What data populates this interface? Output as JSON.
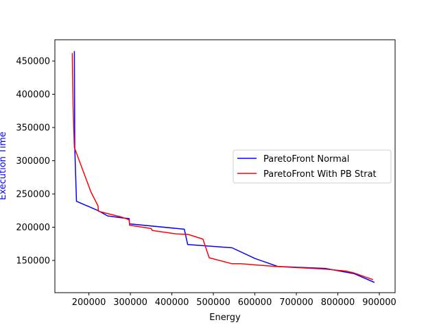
{
  "chart_data": {
    "type": "line",
    "xlabel": "Energy",
    "ylabel": "Execution Time",
    "xlim": [
      118000,
      938000
    ],
    "ylim": [
      101500,
      482000
    ],
    "x_ticks": [
      200000,
      300000,
      400000,
      500000,
      600000,
      700000,
      800000,
      900000
    ],
    "y_ticks": [
      150000,
      200000,
      250000,
      300000,
      350000,
      400000,
      450000
    ],
    "x_tick_labels": [
      "200000",
      "300000",
      "400000",
      "500000",
      "600000",
      "700000",
      "800000",
      "900000"
    ],
    "y_tick_labels": [
      "150000",
      "200000",
      "250000",
      "300000",
      "350000",
      "400000",
      "450000"
    ],
    "grid": false,
    "legend_position": "center-right",
    "colors": {
      "ylabel": "#0000ff",
      "axes": "#000000"
    },
    "series": [
      {
        "name": "ParetoFront Normal",
        "color": "#0000ff",
        "x": [
          165000,
          166000,
          170000,
          222000,
          245000,
          280000,
          297000,
          298000,
          430000,
          438000,
          545000,
          600000,
          655000,
          770000,
          840000,
          888000
        ],
        "y": [
          465000,
          320000,
          239000,
          225000,
          217000,
          214000,
          213000,
          205000,
          197000,
          174000,
          169000,
          153000,
          141000,
          138000,
          130000,
          117000
        ]
      },
      {
        "name": "ParetoFront With PB Strat",
        "color": "#ff0000",
        "x": [
          160000,
          162000,
          165000,
          205000,
          222000,
          223000,
          242000,
          280000,
          297000,
          298000,
          350000,
          353000,
          410000,
          440000,
          475000,
          490000,
          545000,
          565000,
          650000,
          770000,
          820000,
          840000,
          885000
        ],
        "y": [
          462000,
          380000,
          320000,
          253000,
          232000,
          224000,
          221000,
          215000,
          211000,
          203000,
          198000,
          195000,
          190000,
          189000,
          182000,
          154000,
          145000,
          145000,
          141000,
          137000,
          134000,
          131000,
          121000
        ]
      }
    ]
  }
}
